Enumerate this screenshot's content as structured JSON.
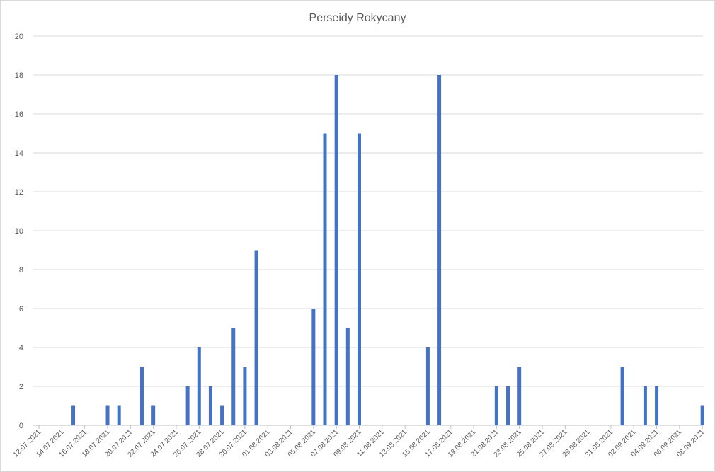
{
  "chart_data": {
    "type": "bar",
    "title": "Perseidy Rokycany",
    "xlabel": "",
    "ylabel": "",
    "ylim": [
      0,
      20
    ],
    "ytick_step": 2,
    "grid": true,
    "bar_color": "#4472c4",
    "categories": [
      "12.07.2021",
      "13.07.2021",
      "14.07.2021",
      "15.07.2021",
      "16.07.2021",
      "17.07.2021",
      "18.07.2021",
      "19.07.2021",
      "20.07.2021",
      "21.07.2021",
      "22.07.2021",
      "23.07.2021",
      "24.07.2021",
      "25.07.2021",
      "26.07.2021",
      "27.07.2021",
      "28.07.2021",
      "29.07.2021",
      "30.07.2021",
      "31.07.2021",
      "01.08.2021",
      "02.08.2021",
      "03.08.2021",
      "04.08.2021",
      "05.08.2021",
      "06.08.2021",
      "07.08.2021",
      "08.08.2021",
      "09.08.2021",
      "10.08.2021",
      "11.08.2021",
      "12.08.2021",
      "13.08.2021",
      "14.08.2021",
      "15.08.2021",
      "16.08.2021",
      "17.08.2021",
      "18.08.2021",
      "19.08.2021",
      "20.08.2021",
      "21.08.2021",
      "22.08.2021",
      "23.08.2021",
      "24.08.2021",
      "25.08.2021",
      "26.08.2021",
      "27.08.2021",
      "28.08.2021",
      "29.08.2021",
      "30.08.2021",
      "31.08.2021",
      "01.09.2021",
      "02.09.2021",
      "03.09.2021",
      "04.09.2021",
      "05.09.2021",
      "06.09.2021",
      "07.09.2021",
      "08.09.2021"
    ],
    "tick_labels": [
      "12.07.2021",
      "14.07.2021",
      "16.07.2021",
      "18.07.2021",
      "20.07.2021",
      "22.07.2021",
      "24.07.2021",
      "26.07.2021",
      "28.07.2021",
      "30.07.2021",
      "01.08.2021",
      "03.08.2021",
      "05.08.2021",
      "07.08.2021",
      "09.08.2021",
      "11.08.2021",
      "13.08.2021",
      "15.08.2021",
      "17.08.2021",
      "19.08.2021",
      "21.08.2021",
      "23.08.2021",
      "25.08.2021",
      "27.08.2021",
      "29.08.2021",
      "31.08.2021",
      "02.09.2021",
      "04.09.2021",
      "06.09.2021",
      "08.09.2021"
    ],
    "values": [
      0,
      0,
      0,
      1,
      0,
      0,
      1,
      1,
      0,
      3,
      1,
      0,
      0,
      2,
      4,
      2,
      1,
      5,
      3,
      9,
      0,
      0,
      0,
      0,
      6,
      15,
      18,
      5,
      15,
      0,
      0,
      0,
      0,
      0,
      4,
      18,
      0,
      0,
      0,
      0,
      2,
      2,
      3,
      0,
      0,
      0,
      0,
      0,
      0,
      0,
      0,
      3,
      0,
      2,
      2,
      0,
      0,
      0,
      1
    ]
  }
}
